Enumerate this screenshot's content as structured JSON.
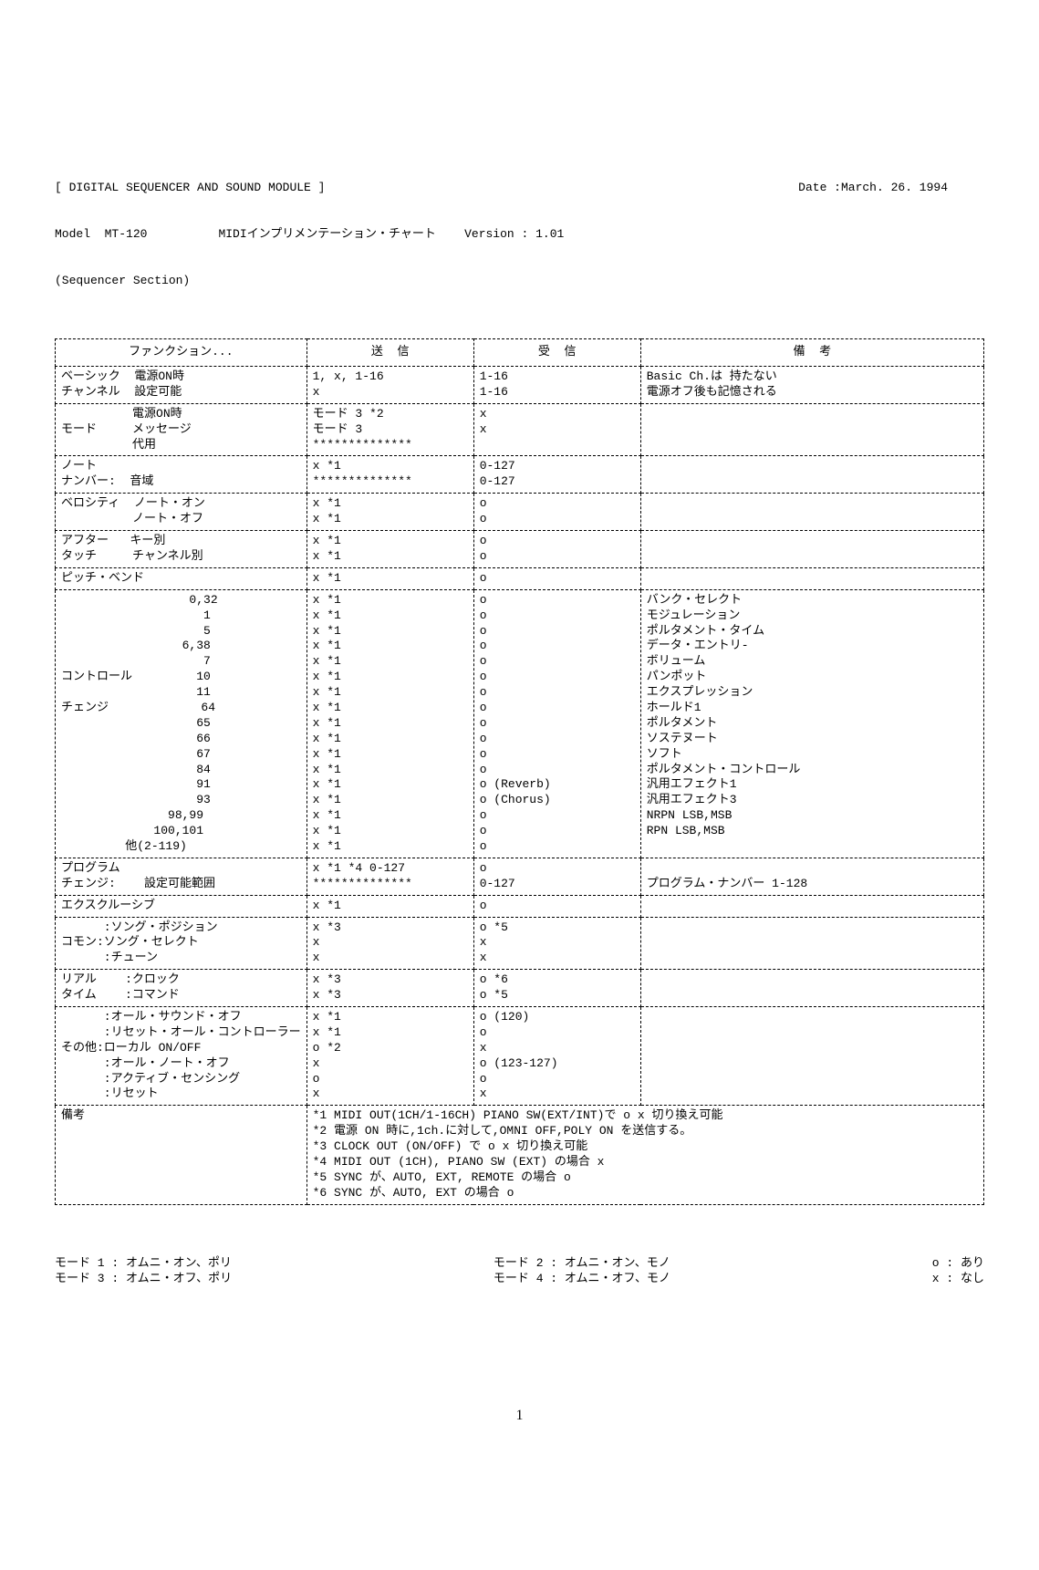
{
  "header": {
    "title_bracket": "[ DIGITAL SEQUENCER AND SOUND MODULE ]",
    "date_label": "Date :March. 26. 1994",
    "model": "Model  MT-120",
    "chart_title": "MIDIインプリメンテーション・チャート",
    "version": "Version : 1.01",
    "section": "(Sequencer Section)"
  },
  "columns": {
    "function": "ファンクション...",
    "transmit": "送  信",
    "receive": "受  信",
    "remarks": "備  考"
  },
  "rows": {
    "basic_ch": {
      "func": "ベーシック  電源ON時\nチャンネル  設定可能",
      "tx": "1, x, 1-16\nx",
      "rx": "1-16\n1-16",
      "rem": "Basic Ch.は 持たない\n電源オフ後も記憶される"
    },
    "mode": {
      "func": "          電源ON時\nモード     メッセージ\n          代用",
      "tx": "モード 3 *2\nモード 3\n**************",
      "rx": "x\nx\n",
      "rem": ""
    },
    "note": {
      "func": "ノート\nナンバー:  音域",
      "tx": "x *1\n**************",
      "rx": "0-127\n0-127",
      "rem": ""
    },
    "velocity": {
      "func": "ベロシティ  ノート・オン\n          ノート・オフ",
      "tx": "x *1\nx *1",
      "rx": "o\no",
      "rem": ""
    },
    "after": {
      "func": "アフター   キー別\nタッチ     チャンネル別",
      "tx": "x *1\nx *1",
      "rx": "o\no",
      "rem": ""
    },
    "pitch": {
      "func": "ピッチ・ベンド",
      "tx": "x *1",
      "rx": "o",
      "rem": ""
    },
    "control": {
      "func": "                  0,32\n                    1\n                    5\n                 6,38\n                    7\nコントロール         10\n                   11\nチェンジ             64\n                   65\n                   66\n                   67\n                   84\n                   91\n                   93\n               98,99\n             100,101\n         他(2-119)",
      "tx": "x *1\nx *1\nx *1\nx *1\nx *1\nx *1\nx *1\nx *1\nx *1\nx *1\nx *1\nx *1\nx *1\nx *1\nx *1\nx *1\nx *1",
      "rx": "o\no\no\no\no\no\no\no\no\no\no\no\no (Reverb)\no (Chorus)\no\no\no",
      "rem": "バンク・セレクト\nモジュレーション\nポルタメント・タイム\nデータ・エントリ-\nボリューム\nパンポット\nエクスプレッション\nホールド1\nポルタメント\nソステヌート\nソフト\nポルタメント・コントロール\n汎用エフェクト1\n汎用エフェクト3\nNRPN LSB,MSB\nRPN LSB,MSB\n"
    },
    "program": {
      "func": "プログラム\nチェンジ:    設定可能範囲",
      "tx": "x *1 *4 0-127\n**************",
      "rx": "o\n0-127",
      "rem": "\nプログラム・ナンバー 1-128"
    },
    "exclusive": {
      "func": "エクスクルーシブ",
      "tx": "x *1",
      "rx": "o",
      "rem": ""
    },
    "common": {
      "func": "      :ソング・ポジション\nコモン:ソング・セレクト\n      :チューン",
      "tx": "x *3\nx\nx",
      "rx": "o *5\nx\nx",
      "rem": ""
    },
    "realtime": {
      "func": "リアル    :クロック\nタイム    :コマンド",
      "tx": "x *3\nx *3",
      "rx": "o *6\no *5",
      "rem": ""
    },
    "other": {
      "func": "      :オール・サウンド・オフ\n      :リセット・オール・コントローラー\nその他:ローカル ON/OFF\n      :オール・ノート・オフ\n      :アクティブ・センシング\n      :リセット",
      "tx": "x *1\nx *1\no *2\nx\no\nx",
      "rx": "o (120)\no\nx\no (123-127)\no\nx",
      "rem": ""
    },
    "notes": {
      "func": "備考",
      "body": "*1 MIDI OUT(1CH/1-16CH) PIANO SW(EXT/INT)で o x 切り換え可能\n*2 電源 ON 時に,1ch.に対して,OMNI OFF,POLY ON を送信する。\n*3 CLOCK OUT (ON/OFF) で o x 切り換え可能\n*4 MIDI OUT (1CH), PIANO SW (EXT) の場合 x\n*5 SYNC が、AUTO, EXT, REMOTE の場合 o\n*6 SYNC が、AUTO, EXT の場合 o"
    }
  },
  "footer": {
    "mode1": "モード 1 : オムニ・オン、ポリ",
    "mode2": "モード 2 : オムニ・オン、モノ",
    "mode3": "モード 3 : オムニ・オフ、ポリ",
    "mode4": "モード 4 : オムニ・オフ、モノ",
    "o": "o : あり",
    "x": "x : なし"
  },
  "page_number": "1",
  "style": {
    "font_family": "MS Gothic, Courier New, monospace",
    "font_size_pt": 10,
    "text_color": "#000000",
    "background_color": "#ffffff",
    "border_style": "dashed"
  }
}
